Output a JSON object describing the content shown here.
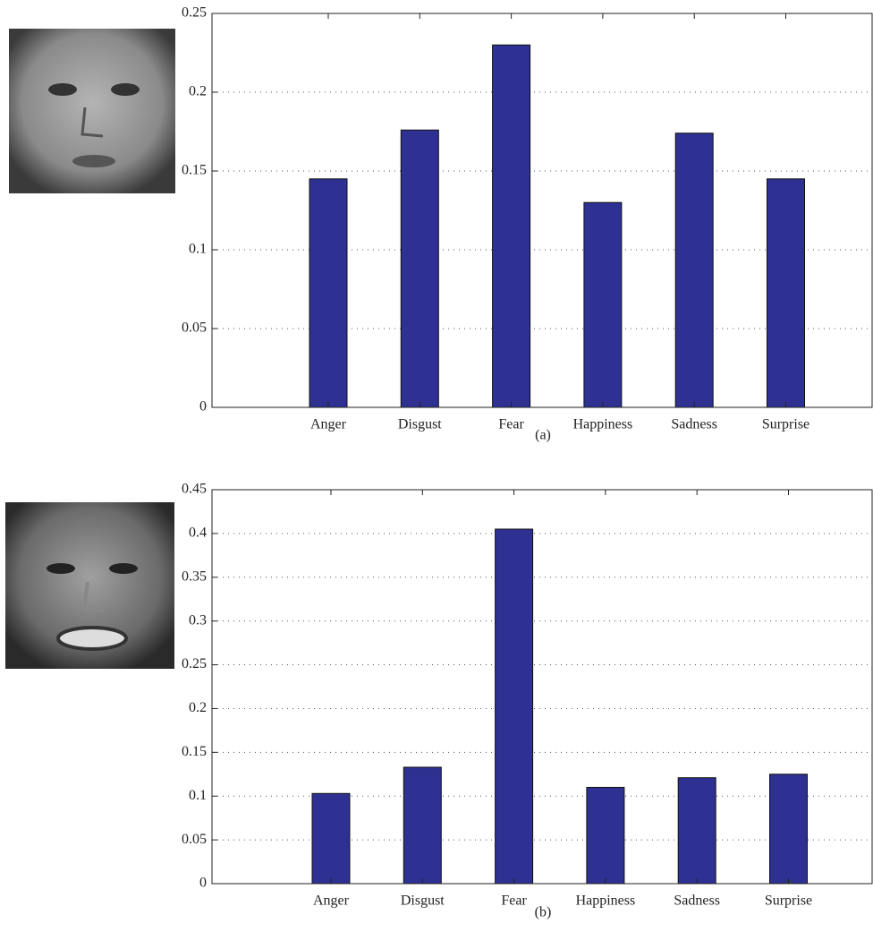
{
  "chart_data": [
    {
      "type": "bar",
      "caption": "(a)",
      "categories": [
        "Anger",
        "Disgust",
        "Fear",
        "Happiness",
        "Sadness",
        "Surprise"
      ],
      "values": [
        0.145,
        0.176,
        0.23,
        0.13,
        0.174,
        0.145
      ],
      "color": "#2e3192",
      "ylim": [
        0,
        0.25
      ],
      "yticks": [
        0,
        0.05,
        0.1,
        0.15,
        0.2,
        0.25
      ],
      "grid": true
    },
    {
      "type": "bar",
      "caption": "(b)",
      "categories": [
        "Anger",
        "Disgust",
        "Fear",
        "Happiness",
        "Sadness",
        "Surprise"
      ],
      "values": [
        0.103,
        0.133,
        0.405,
        0.11,
        0.121,
        0.125
      ],
      "color": "#2e3192",
      "ylim": [
        0,
        0.45
      ],
      "yticks": [
        0,
        0.05,
        0.1,
        0.15,
        0.2,
        0.25,
        0.3,
        0.35,
        0.4,
        0.45
      ],
      "grid": true
    }
  ]
}
